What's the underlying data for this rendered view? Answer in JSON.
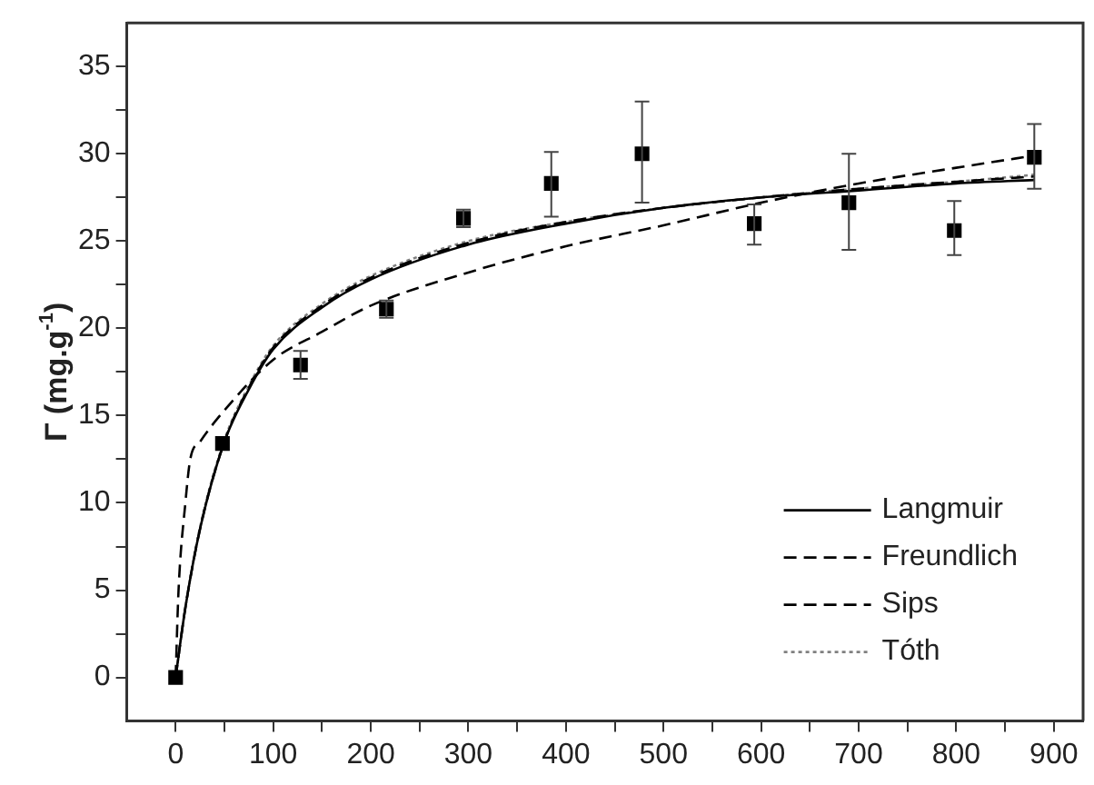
{
  "chart_data": {
    "type": "scatter",
    "ylabel": "Γ (mg.g$^{-1}$)",
    "xlim": [
      -50,
      930
    ],
    "ylim": [
      -2.5,
      37.5
    ],
    "xticks": [
      0,
      {
        "value": 50,
        "label": null
      },
      100,
      {
        "value": 150,
        "label": null
      },
      200,
      {
        "value": 250,
        "label": null
      },
      300,
      {
        "value": 350,
        "label": null
      },
      400,
      {
        "value": 450,
        "label": null
      },
      500,
      {
        "value": 550,
        "label": null
      },
      600,
      {
        "value": 650,
        "label": null
      },
      700,
      {
        "value": 750,
        "label": null
      },
      800,
      {
        "value": 850,
        "label": null
      },
      900
    ],
    "yticks": [
      0,
      {
        "value": 2.5,
        "label": null
      },
      5,
      {
        "value": 7.5,
        "label": null
      },
      10,
      {
        "value": 12.5,
        "label": null
      },
      15,
      {
        "value": 17.5,
        "label": null
      },
      20,
      {
        "value": 22.5,
        "label": null
      },
      25,
      {
        "value": 27.5,
        "label": null
      },
      30,
      {
        "value": 32.5,
        "label": null
      },
      35
    ],
    "grid": false,
    "legend": "bottom right",
    "series": [
      {
        "marker": "square",
        "color": "#000000",
        "x": [
          0,
          48,
          128,
          216,
          295,
          385,
          478,
          593,
          690,
          798,
          880
        ],
        "values": [
          0,
          13.4,
          17.9,
          21.1,
          26.3,
          28.3,
          30.0,
          26.0,
          27.2,
          25.6,
          29.8
        ],
        "errors": [
          null,
          null,
          [
            17.1,
            18.7
          ],
          [
            20.6,
            21.6
          ],
          [
            25.8,
            26.8
          ],
          [
            26.4,
            30.1
          ],
          [
            27.2,
            33.0
          ],
          [
            24.8,
            27.1
          ],
          [
            24.5,
            30.0
          ],
          [
            24.2,
            27.3
          ],
          [
            28.0,
            31.7
          ]
        ]
      },
      {
        "type": "line",
        "name": "Langmuir",
        "marker": "none",
        "line_style": "solid",
        "color": "#000000",
        "x": [
          0,
          10,
          25,
          50,
          75,
          100,
          150,
          200,
          300,
          400,
          500,
          600,
          700,
          800,
          880
        ],
        "values": [
          0,
          4,
          8.5,
          13.5,
          16.5,
          18.8,
          21.2,
          22.8,
          24.8,
          26.0,
          26.9,
          27.5,
          27.9,
          28.3,
          28.5
        ]
      },
      {
        "type": "line",
        "name": "Freundlich",
        "marker": "none",
        "line_style": "dashed",
        "color": "#000000",
        "x": [
          0,
          3,
          10,
          15,
          25,
          50,
          100,
          150,
          200,
          300,
          400,
          500,
          600,
          700,
          800,
          880
        ],
        "values": [
          0,
          5,
          10,
          12.5,
          13.5,
          15.3,
          18.2,
          19.8,
          21.3,
          23.2,
          24.7,
          25.9,
          27.2,
          28.3,
          29.2,
          29.9
        ]
      },
      {
        "type": "line",
        "name": "Sips",
        "marker": "none",
        "line_style": "dashed",
        "color": "#000000",
        "x": [
          0,
          10,
          25,
          50,
          75,
          100,
          150,
          200,
          300,
          400,
          500,
          600,
          700,
          800,
          880
        ],
        "values": [
          0,
          4,
          8.5,
          13.5,
          16.6,
          18.9,
          21.3,
          22.9,
          24.9,
          26.1,
          26.9,
          27.5,
          28.0,
          28.4,
          28.7
        ]
      },
      {
        "type": "line",
        "name": "Tóth",
        "marker": "none",
        "line_style": "dotted",
        "color": "#808080",
        "x": [
          0,
          10,
          25,
          50,
          75,
          100,
          150,
          200,
          300,
          400,
          500,
          600,
          700,
          800,
          880
        ],
        "values": [
          0,
          4,
          8.6,
          13.6,
          16.7,
          19.0,
          21.4,
          23.0,
          25.0,
          26.1,
          26.9,
          27.5,
          28.0,
          28.4,
          28.8
        ]
      }
    ]
  }
}
